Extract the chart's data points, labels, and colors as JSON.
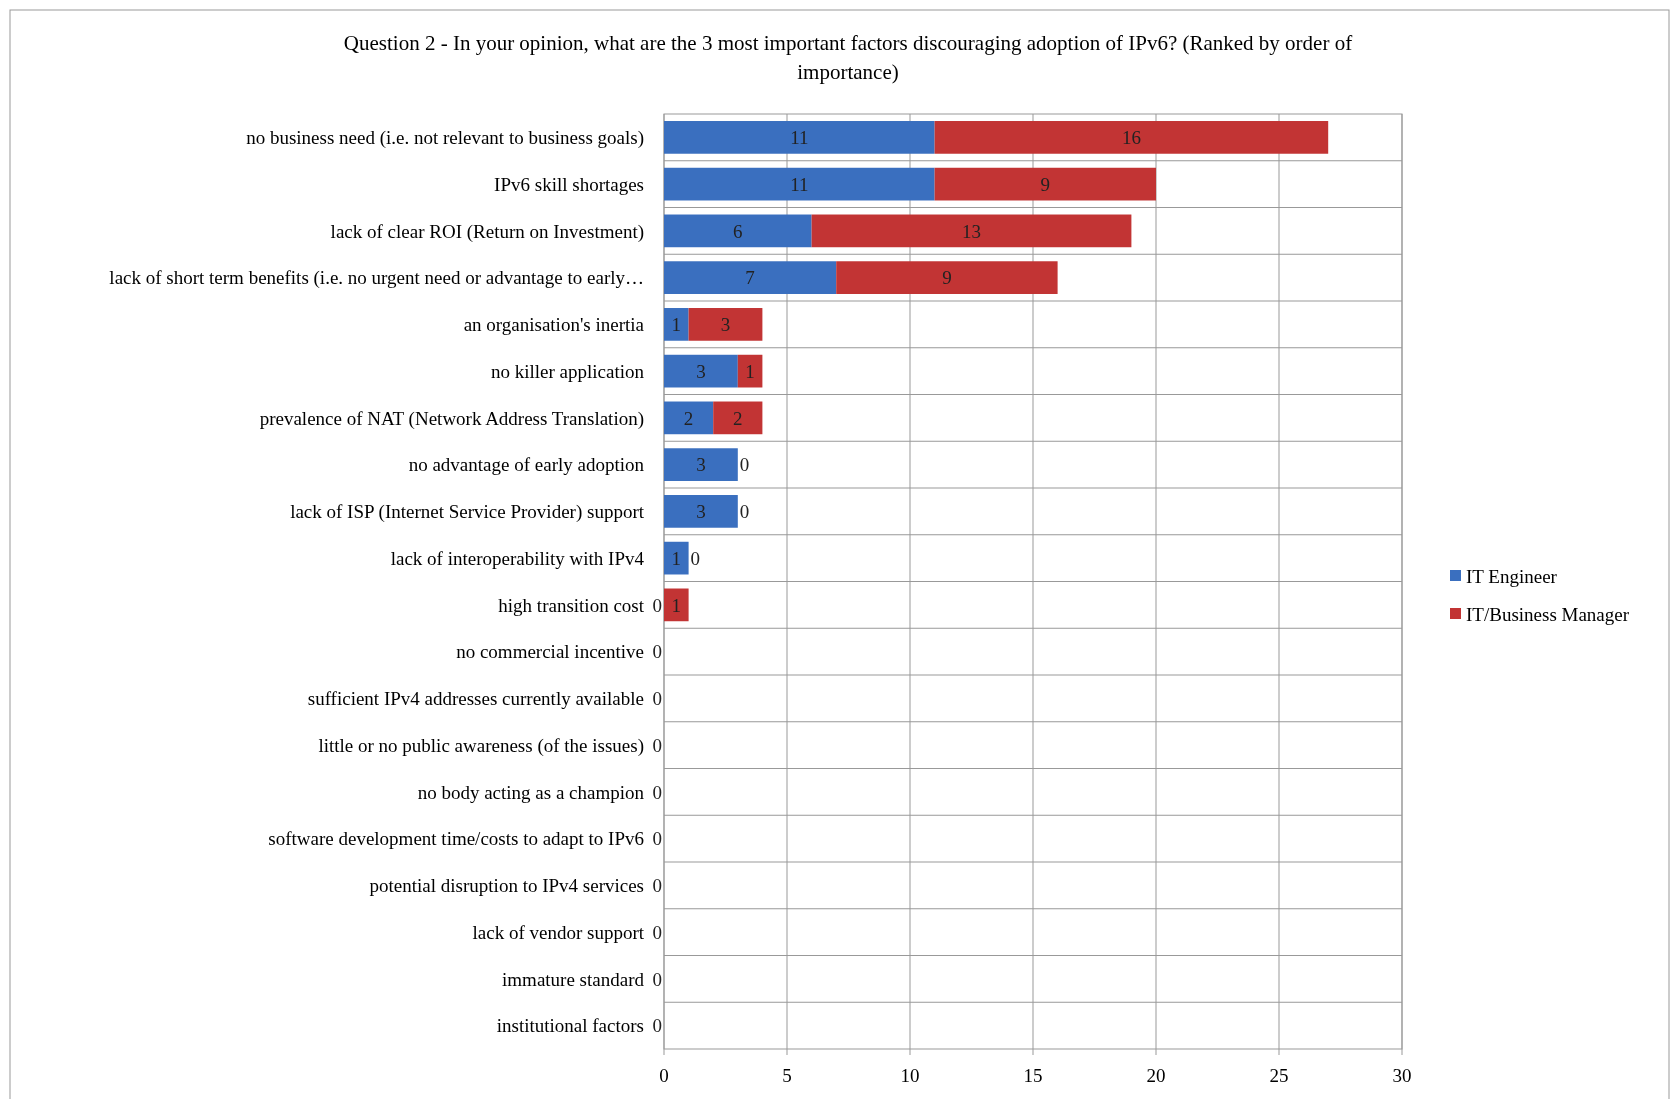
{
  "chart_data": {
    "type": "bar",
    "orientation": "horizontal",
    "stacked": true,
    "title": "Question 2 - In your opinion, what are the 3 most important factors discouraging adoption of IPv6? (Ranked by order of importance)",
    "categories": [
      "no business need (i.e. not relevant to business goals)",
      "IPv6 skill shortages",
      "lack of clear ROI (Return on Investment)",
      "lack of short term benefits (i.e. no urgent need or advantage to early…",
      "an organisation's inertia",
      "no killer application",
      "prevalence of NAT (Network Address Translation)",
      "no advantage of early adoption",
      "lack of ISP (Internet Service Provider) support",
      "lack of interoperability with IPv4",
      "high transition cost",
      "no commercial incentive",
      "sufficient IPv4 addresses currently available",
      "little or no public awareness (of the issues)",
      "no body acting as a champion",
      "software development time/costs to adapt to IPv6",
      "potential disruption to IPv4 services",
      "lack of vendor support",
      "immature standard",
      "institutional factors"
    ],
    "series": [
      {
        "name": "IT Engineer",
        "color": "#3a6fbf",
        "values": [
          11,
          11,
          6,
          7,
          1,
          3,
          2,
          3,
          3,
          1,
          0,
          0,
          0,
          0,
          0,
          0,
          0,
          0,
          0,
          0
        ],
        "value_labels": [
          "11",
          "11",
          "6",
          "7",
          "1",
          "3",
          "2",
          "3",
          "3",
          "1",
          "0",
          "0",
          "0",
          "0",
          "0",
          "0",
          "0",
          "0",
          "0",
          "0"
        ]
      },
      {
        "name": "IT/Business Manager",
        "color": "#c23434",
        "values": [
          16,
          9,
          13,
          9,
          3,
          1,
          2,
          0,
          0,
          0,
          1,
          0,
          0,
          0,
          0,
          0,
          0,
          0,
          0,
          0
        ],
        "value_labels": [
          "16",
          "9",
          "13",
          "9",
          "3",
          "1",
          "2",
          "0",
          "0",
          "0",
          "1",
          null,
          null,
          null,
          null,
          null,
          null,
          null,
          null,
          null
        ]
      }
    ],
    "xlim": [
      0,
      30
    ],
    "xticks": [
      0,
      5,
      10,
      15,
      20,
      25,
      30
    ],
    "grid": true,
    "legend": "right"
  }
}
